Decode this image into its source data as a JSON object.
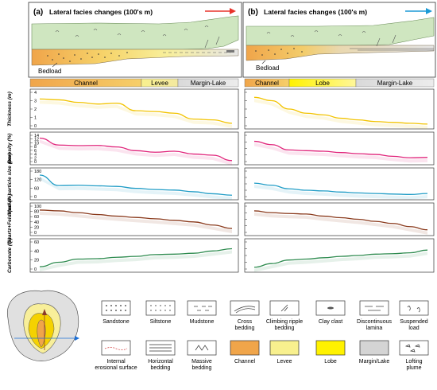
{
  "panels": [
    {
      "id": "a",
      "tag": "(a)",
      "title": "Lateral facies changes (100's m)",
      "arrow_color": "#e8332b",
      "bedload_label": "Bedload",
      "zones": [
        "Channel",
        "Levee",
        "Margin-Lake"
      ]
    },
    {
      "id": "b",
      "tag": "(b)",
      "title": "Lateral facies changes (100's m)",
      "arrow_color": "#1b9ad6",
      "bedload_label": "Bedload",
      "zones": [
        "Channel",
        "Lobe",
        "Margin-Lake"
      ]
    }
  ],
  "chart_data": [
    {
      "type": "line",
      "panel": "a",
      "tracks": [
        {
          "ylabel": "Thickness (m)",
          "ylim": [
            0,
            4
          ],
          "ticks": [
            0,
            1,
            2,
            3,
            4
          ],
          "color": "#f2c300",
          "x": [
            0,
            10,
            20,
            30,
            40,
            50,
            60,
            70,
            80,
            90,
            100
          ],
          "values": [
            3.2,
            3.1,
            2.8,
            2.6,
            2.7,
            1.8,
            1.7,
            1.5,
            0.8,
            0.7,
            0.3
          ]
        },
        {
          "ylabel": "Porosity (%)",
          "ylim": [
            0,
            14
          ],
          "ticks": [
            0,
            2,
            4,
            6,
            8,
            10,
            12,
            14
          ],
          "color": "#e0237a",
          "x": [
            0,
            10,
            20,
            30,
            40,
            50,
            60,
            70,
            80,
            90,
            100
          ],
          "values": [
            12.5,
            8.8,
            8.5,
            8.6,
            7.8,
            5.8,
            5.0,
            5.5,
            4.0,
            3.4,
            0.5
          ]
        },
        {
          "ylabel": "Median particle size (μm)",
          "ylim": [
            0,
            180
          ],
          "ticks": [
            0,
            60,
            120,
            180
          ],
          "color": "#1f9cc6",
          "x": [
            0,
            10,
            20,
            30,
            40,
            50,
            60,
            70,
            80,
            90,
            100
          ],
          "values": [
            152,
            78,
            80,
            76,
            72,
            58,
            50,
            46,
            34,
            20,
            10
          ]
        },
        {
          "ylabel": "Quartz+Feldspar (%)",
          "ylim": [
            0,
            100
          ],
          "ticks": [
            0,
            20,
            40,
            60,
            80,
            100
          ],
          "color": "#8a3a1c",
          "x": [
            0,
            10,
            20,
            30,
            40,
            50,
            60,
            70,
            80,
            90,
            100
          ],
          "values": [
            85,
            82,
            75,
            68,
            62,
            57,
            52,
            46,
            40,
            28,
            15
          ]
        },
        {
          "ylabel": "Carbonate (%)",
          "ylim": [
            0,
            60
          ],
          "ticks": [
            0,
            20,
            40,
            60
          ],
          "color": "#2e8b4f",
          "x": [
            0,
            10,
            20,
            30,
            40,
            50,
            60,
            70,
            80,
            90,
            100
          ],
          "values": [
            5,
            15,
            22,
            23,
            26,
            28,
            32,
            33,
            35,
            40,
            45
          ]
        }
      ]
    },
    {
      "type": "line",
      "panel": "b",
      "tracks": [
        {
          "ylabel": "Thickness (m)",
          "ylim": [
            0,
            4
          ],
          "color": "#f2c300",
          "x": [
            0,
            10,
            20,
            30,
            40,
            50,
            60,
            70,
            80,
            90,
            100
          ],
          "values": [
            3.4,
            3.0,
            2.0,
            1.5,
            1.3,
            0.9,
            0.7,
            0.5,
            0.4,
            0.3,
            0.2
          ]
        },
        {
          "ylabel": "Porosity (%)",
          "ylim": [
            0,
            14
          ],
          "color": "#e0237a",
          "x": [
            0,
            10,
            20,
            30,
            40,
            50,
            60,
            70,
            80,
            90,
            100
          ],
          "values": [
            10.8,
            9.0,
            6.2,
            5.8,
            5.5,
            4.8,
            4.2,
            3.8,
            2.8,
            2.0,
            2.2
          ]
        },
        {
          "ylabel": "Median particle size (μm)",
          "ylim": [
            0,
            180
          ],
          "color": "#1f9cc6",
          "x": [
            0,
            10,
            20,
            30,
            40,
            50,
            60,
            70,
            80,
            90,
            100
          ],
          "values": [
            95,
            80,
            55,
            45,
            40,
            32,
            26,
            22,
            18,
            15,
            22
          ]
        },
        {
          "ylabel": "Quartz+Feldspar (%)",
          "ylim": [
            0,
            100
          ],
          "color": "#8a3a1c",
          "x": [
            0,
            10,
            20,
            30,
            40,
            50,
            60,
            70,
            80,
            90,
            100
          ],
          "values": [
            82,
            75,
            72,
            70,
            62,
            56,
            50,
            42,
            34,
            22,
            10
          ]
        },
        {
          "ylabel": "Carbonate (%)",
          "ylim": [
            0,
            60
          ],
          "color": "#2e8b4f",
          "x": [
            0,
            10,
            20,
            30,
            40,
            50,
            60,
            70,
            80,
            90,
            100
          ],
          "values": [
            4,
            12,
            20,
            22,
            25,
            28,
            30,
            33,
            34,
            36,
            42
          ]
        }
      ]
    }
  ],
  "legend": {
    "items": [
      {
        "key": "sandstone",
        "label": "Sandstone"
      },
      {
        "key": "siltstone",
        "label": "Siltstone"
      },
      {
        "key": "mudstone",
        "label": "Mudstone"
      },
      {
        "key": "cross",
        "label": "Cross bedding"
      },
      {
        "key": "climbing",
        "label": "Climbing ripple bedding"
      },
      {
        "key": "clayclast",
        "label": "Clay clast"
      },
      {
        "key": "disclam",
        "label": "Discontinuous lamina"
      },
      {
        "key": "suspended",
        "label": "Suspended load"
      },
      {
        "key": "erosional",
        "label": "Internal erosional surface"
      },
      {
        "key": "horizontal",
        "label": "Horizontal bedding"
      },
      {
        "key": "massive",
        "label": "Massive bedding"
      },
      {
        "key": "channel",
        "label": "Channel",
        "color": "#f0a54a"
      },
      {
        "key": "levee",
        "label": "Levee",
        "color": "#f8f08e"
      },
      {
        "key": "lobe",
        "label": "Lobe",
        "color": "#fff200"
      },
      {
        "key": "margin",
        "label": "Margin/Lake",
        "color": "#d4d4d4"
      },
      {
        "key": "lofting",
        "label": "Lofting plume"
      }
    ]
  }
}
